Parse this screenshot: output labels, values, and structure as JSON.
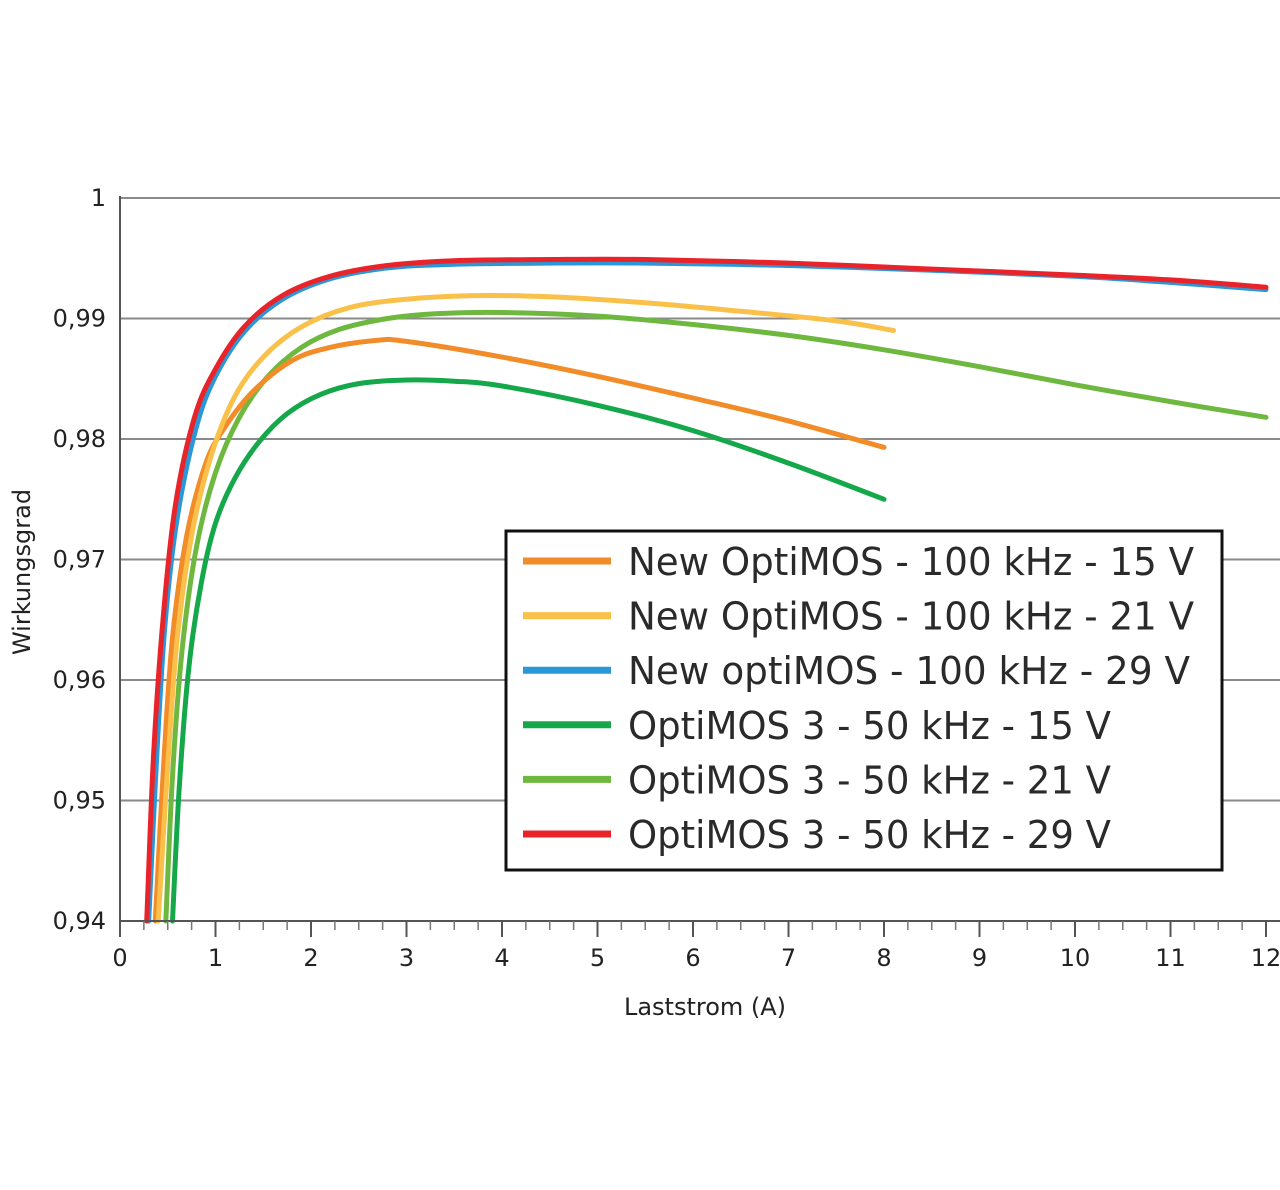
{
  "chart_data": {
    "type": "line",
    "xlabel": "Laststrom (A)",
    "ylabel": "Wirkungsgrad",
    "xlim": [
      0,
      12
    ],
    "ylim": [
      0.94,
      1.0
    ],
    "x_ticks": [
      "0",
      "1",
      "2",
      "3",
      "4",
      "5",
      "6",
      "7",
      "8",
      "9",
      "10",
      "11",
      "12"
    ],
    "y_ticks": [
      {
        "value": 0.94,
        "label": "0,94"
      },
      {
        "value": 0.95,
        "label": "0,95"
      },
      {
        "value": 0.96,
        "label": "0,96"
      },
      {
        "value": 0.97,
        "label": "0,97"
      },
      {
        "value": 0.98,
        "label": "0,98"
      },
      {
        "value": 0.99,
        "label": "0,99"
      },
      {
        "value": 1.0,
        "label": "1"
      }
    ],
    "grid": "horizontal",
    "legend_position": "bottom-right",
    "series": [
      {
        "name": "New OptiMOS - 100 kHz - 15 V",
        "color": "#f28c28",
        "x": [
          0.37,
          0.45,
          0.55,
          0.7,
          0.9,
          1.1,
          1.4,
          1.8,
          2.2,
          2.7,
          3.0,
          4.0,
          5.0,
          6.0,
          7.0,
          8.0
        ],
        "y": [
          0.94,
          0.952,
          0.9635,
          0.972,
          0.978,
          0.981,
          0.984,
          0.9865,
          0.9876,
          0.9882,
          0.9881,
          0.9868,
          0.9852,
          0.9834,
          0.9815,
          0.9793
        ]
      },
      {
        "name": "New OptiMOS - 100 kHz - 21 V",
        "color": "#f9c04a",
        "x": [
          0.4,
          0.5,
          0.6,
          0.75,
          0.95,
          1.2,
          1.5,
          1.9,
          2.4,
          3.0,
          3.7,
          4.5,
          5.5,
          6.5,
          7.5,
          8.1
        ],
        "y": [
          0.94,
          0.953,
          0.9635,
          0.972,
          0.9785,
          0.9835,
          0.9868,
          0.9893,
          0.9909,
          0.9916,
          0.9919,
          0.9918,
          0.9913,
          0.9906,
          0.9898,
          0.989
        ]
      },
      {
        "name": "New optiMOS - 100 kHz - 29 V",
        "color": "#2a98d8",
        "x": [
          0.3,
          0.38,
          0.47,
          0.6,
          0.8,
          1.0,
          1.3,
          1.7,
          2.2,
          2.8,
          3.5,
          4.5,
          5.5,
          7.0,
          8.5,
          10.0,
          11.0,
          12.0
        ],
        "y": [
          0.94,
          0.953,
          0.9645,
          0.9735,
          0.981,
          0.9852,
          0.9889,
          0.9916,
          0.9933,
          0.9942,
          0.9945,
          0.9946,
          0.9946,
          0.9944,
          0.994,
          0.9935,
          0.993,
          0.9924
        ]
      },
      {
        "name": "OptiMOS 3 - 50 kHz - 15 V",
        "color": "#14a84a",
        "x": [
          0.55,
          0.62,
          0.72,
          0.85,
          1.0,
          1.2,
          1.45,
          1.75,
          2.1,
          2.5,
          3.0,
          3.5,
          4.0,
          5.0,
          6.0,
          7.0,
          8.0
        ],
        "y": [
          0.94,
          0.951,
          0.961,
          0.968,
          0.973,
          0.9767,
          0.9797,
          0.9821,
          0.9837,
          0.9846,
          0.9849,
          0.9848,
          0.9844,
          0.9828,
          0.9807,
          0.978,
          0.975
        ]
      },
      {
        "name": "OptiMOS 3 - 50 kHz - 21 V",
        "color": "#6fb83f",
        "x": [
          0.48,
          0.55,
          0.65,
          0.8,
          1.0,
          1.25,
          1.55,
          1.9,
          2.3,
          2.8,
          3.3,
          4.0,
          5.0,
          6.0,
          7.0,
          8.0,
          9.0,
          10.0,
          11.0,
          12.0
        ],
        "y": [
          0.94,
          0.952,
          0.9625,
          0.971,
          0.9772,
          0.9818,
          0.9852,
          0.9876,
          0.9891,
          0.99,
          0.9904,
          0.9905,
          0.9902,
          0.9895,
          0.9886,
          0.9874,
          0.986,
          0.9845,
          0.9831,
          0.9818
        ]
      },
      {
        "name": "OptiMOS 3 - 50 kHz - 29 V",
        "color": "#e8232a",
        "x": [
          0.28,
          0.35,
          0.45,
          0.58,
          0.78,
          1.0,
          1.3,
          1.7,
          2.2,
          2.8,
          3.5,
          4.5,
          5.5,
          7.0,
          8.5,
          10.0,
          11.0,
          12.0
        ],
        "y": [
          0.94,
          0.9535,
          0.965,
          0.9745,
          0.9818,
          0.9858,
          0.9893,
          0.9919,
          0.9935,
          0.9944,
          0.9948,
          0.9949,
          0.9949,
          0.9946,
          0.9941,
          0.9936,
          0.9932,
          0.9926
        ]
      }
    ]
  }
}
